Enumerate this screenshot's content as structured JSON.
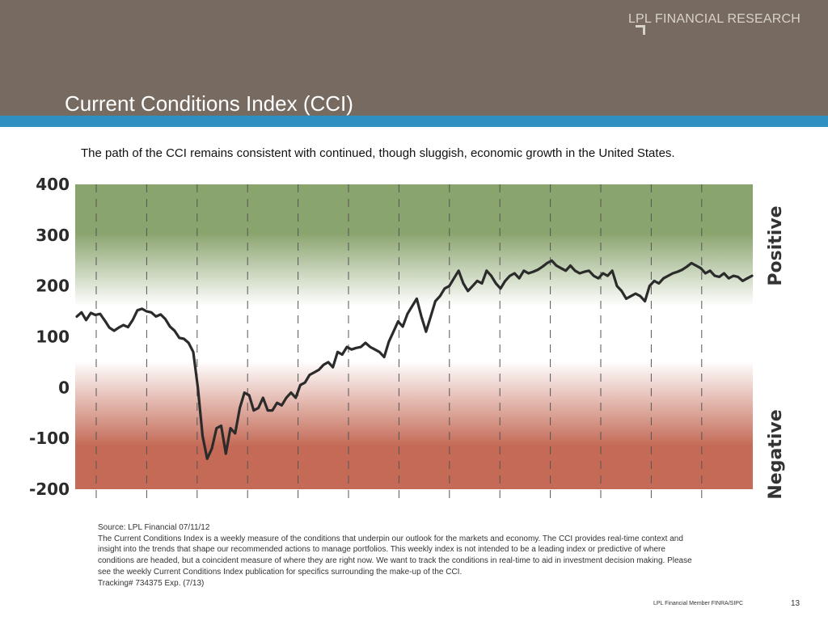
{
  "header": {
    "brand": "LPL FINANCIAL RESEARCH",
    "title": "Current Conditions Index (CCI)",
    "colors": {
      "band": "#776b61",
      "stripe": "#2f8fc0"
    }
  },
  "subtitle": "The path of the CCI remains consistent with continued, though sluggish, economic growth in the United States.",
  "chart_data": {
    "type": "line",
    "title": "",
    "xlabel": "",
    "ylabel": "",
    "ylim": [
      -200,
      400
    ],
    "yticks": [
      "400",
      "300",
      "200",
      "100",
      "0",
      "-100",
      "-200"
    ],
    "ytick_values": [
      400,
      300,
      200,
      100,
      0,
      -100,
      -200
    ],
    "zone_labels": {
      "positive": "Positive",
      "negative": "Negative"
    },
    "background_colors": {
      "positive": "#8aa46e",
      "neutral": "#ffffff",
      "negative": "#c46a56"
    },
    "line_color": "#2b2b2b",
    "grid": "dashed vertical",
    "vertical_gridlines": 13,
    "series": [
      {
        "values": [
          140,
          148,
          133,
          147,
          143,
          145,
          132,
          118,
          112,
          118,
          123,
          119,
          133,
          152,
          155,
          150,
          148,
          140,
          144,
          135,
          120,
          112,
          98,
          96,
          88,
          70,
          0,
          -95,
          -140,
          -120,
          -80,
          -75,
          -130,
          -80,
          -90,
          -40,
          -10,
          -15,
          -45,
          -40,
          -20,
          -45,
          -45,
          -30,
          -35,
          -20,
          -10,
          -20,
          5,
          10,
          25,
          30,
          35,
          45,
          50,
          40,
          70,
          65,
          80,
          75,
          78,
          80,
          88,
          80,
          75,
          70,
          60,
          90,
          110,
          130,
          120,
          145,
          160,
          175,
          140,
          110,
          140,
          170,
          180,
          195,
          200,
          215,
          230,
          205,
          190,
          200,
          210,
          205,
          230,
          220,
          205,
          195,
          210,
          220,
          225,
          215,
          230,
          225,
          228,
          232,
          238,
          245,
          250,
          240,
          235,
          230,
          240,
          230,
          225,
          228,
          230,
          220,
          215,
          225,
          220,
          230,
          200,
          190,
          175,
          180,
          185,
          180,
          170,
          200,
          210,
          205,
          215,
          220,
          225,
          228,
          232,
          238,
          245,
          240,
          235,
          225,
          230,
          220,
          218,
          225,
          215,
          220,
          218,
          210,
          215,
          220
        ]
      }
    ]
  },
  "footnote": {
    "source": "Source: LPL Financial 07/11/12",
    "body": "The Current Conditions Index is a weekly measure of the conditions that underpin our outlook for the markets and economy. The CCI provides real-time context and insight into the trends that shape our recommended actions to manage portfolios. This weekly index is not intended to be a leading index or predictive of where conditions are headed, but a coincident measure of where they are right now. We want to track the conditions in real-time to aid in investment decision making. Please see the weekly Current Conditions Index publication for specifics surrounding the make-up of the CCI.",
    "tracking": "Tracking# 734375 Exp. (7/13)"
  },
  "footer": {
    "member": "LPL Financial Member FINRA/SIPC",
    "page_number": "13"
  }
}
